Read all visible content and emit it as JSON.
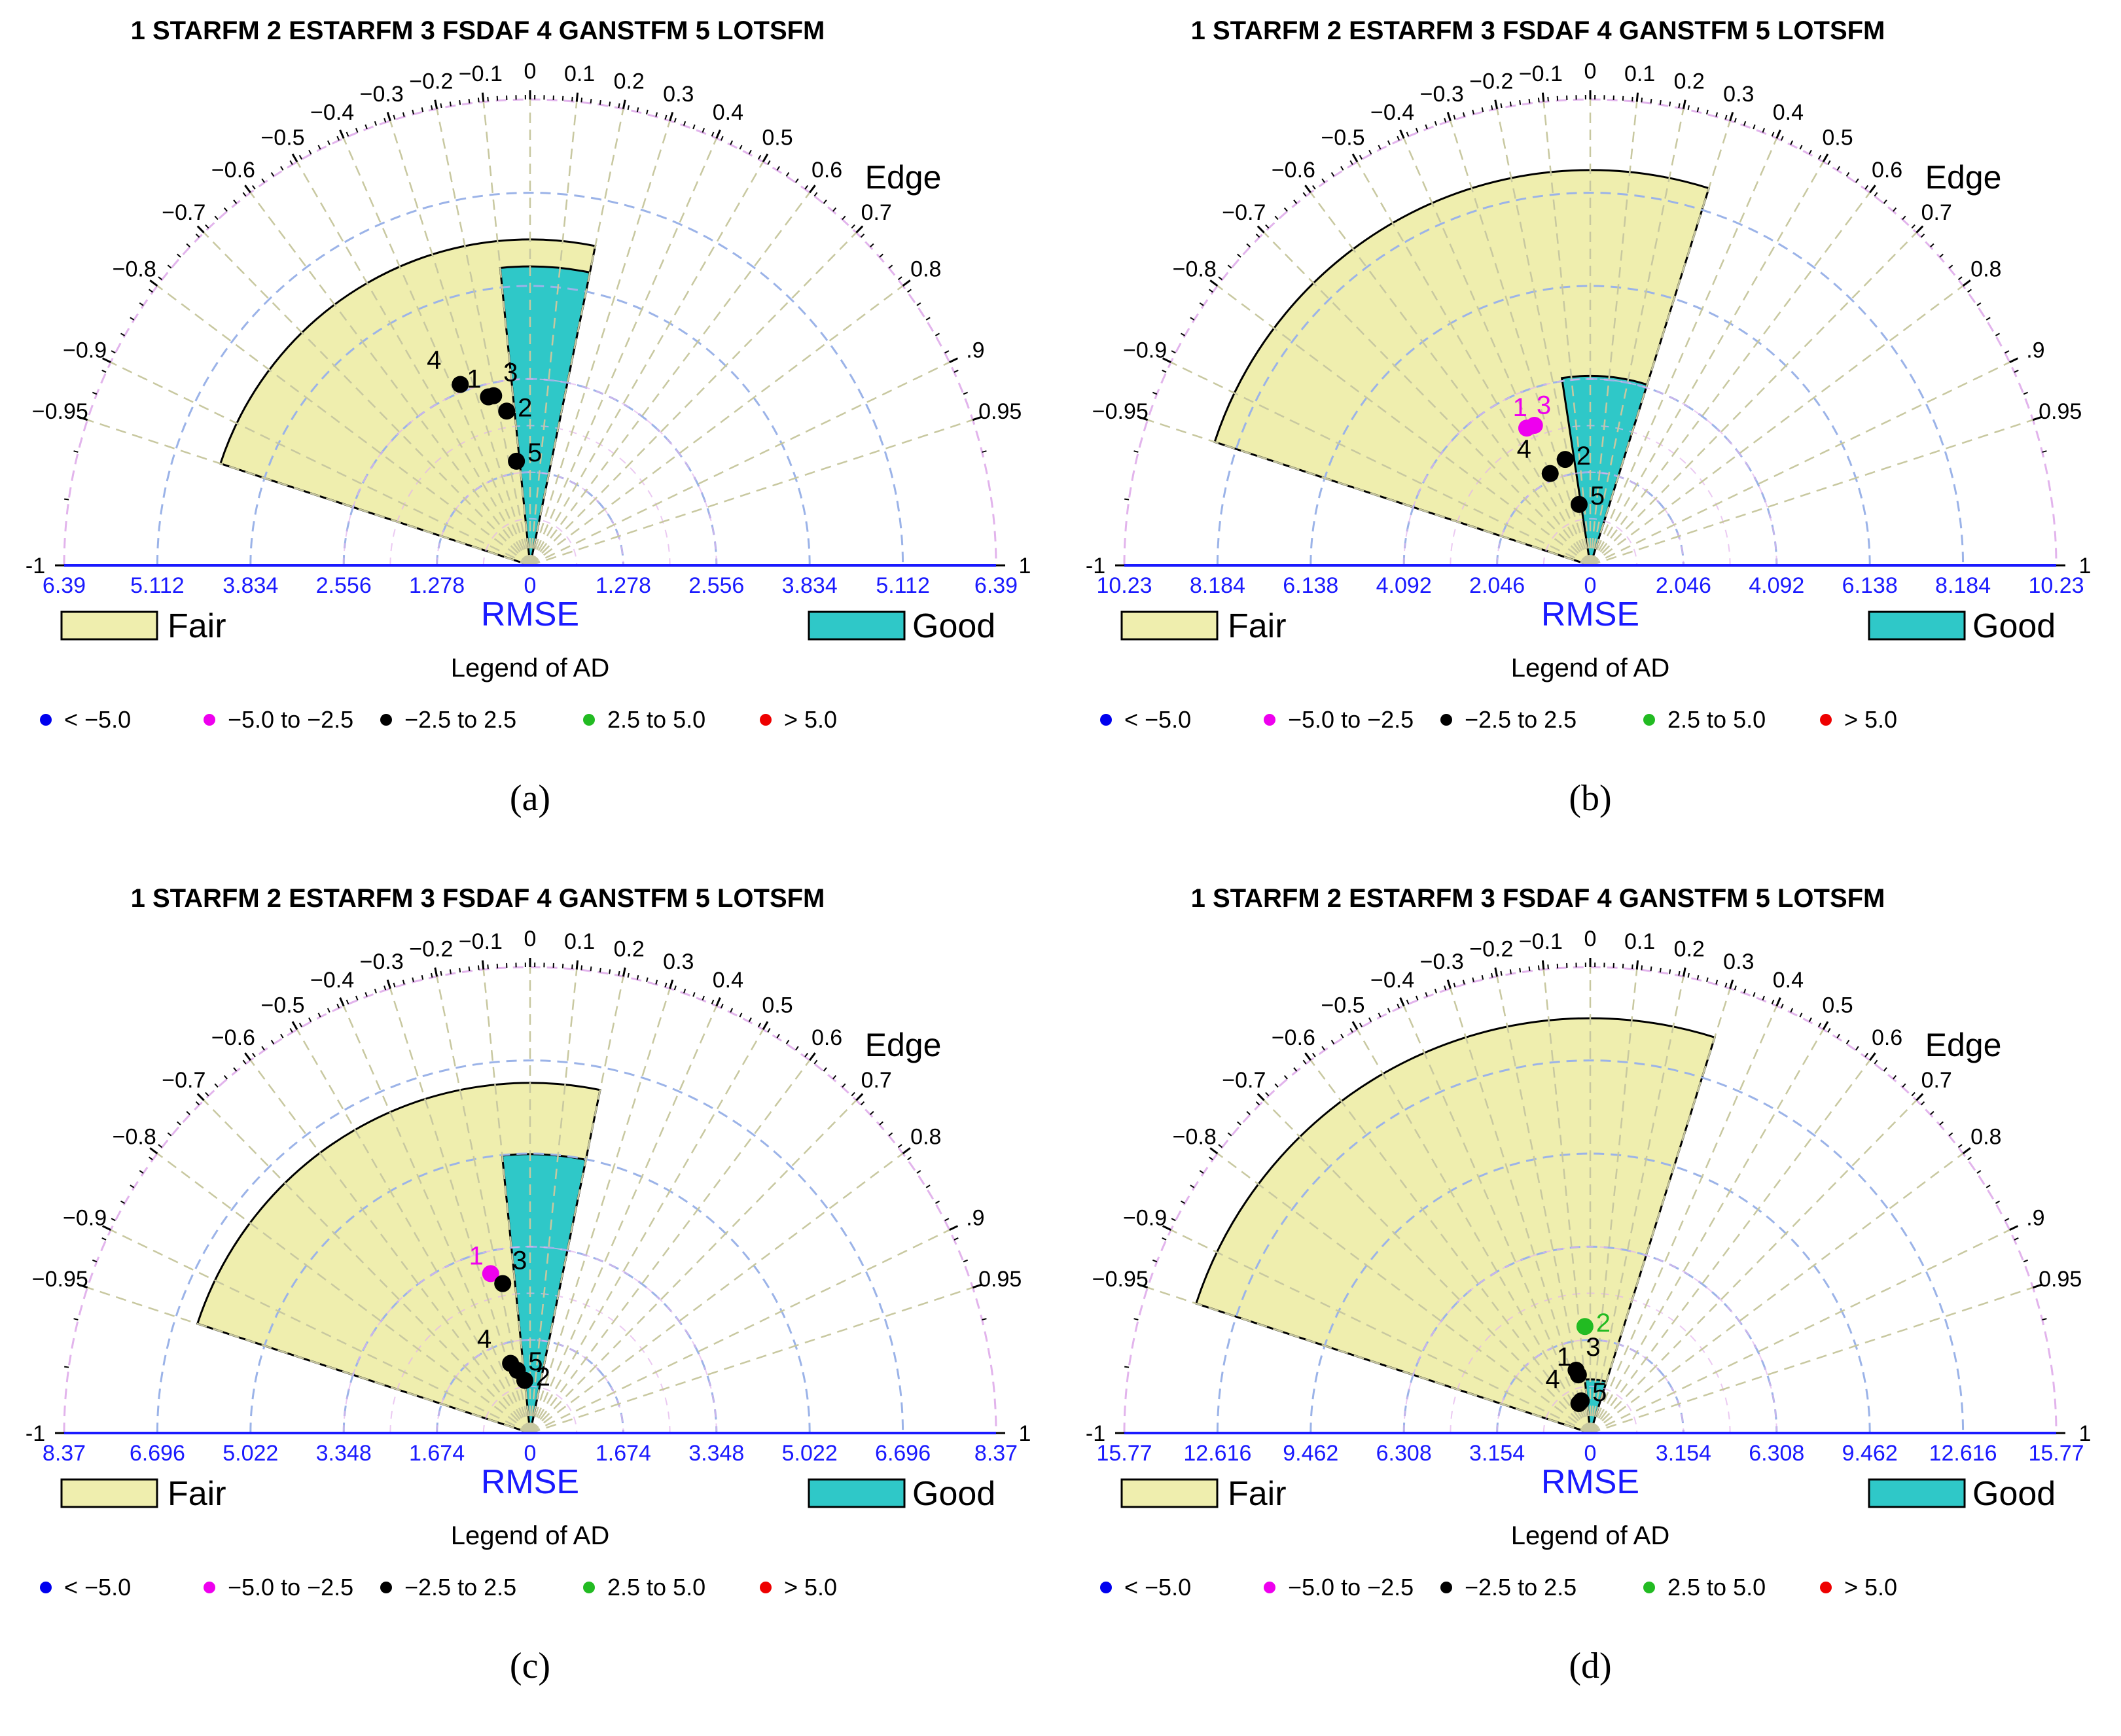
{
  "colors": {
    "fair_fill": "#efeeae",
    "good_fill": "#2fc8c8",
    "grid_corr": "#c8c8a0",
    "grid_rmse": "#9bb3e8",
    "grid_outer": "#e2b4ec",
    "axis": "#1a1aff",
    "ad_colors": [
      "#0000ee",
      "#ee00ee",
      "#000000",
      "#22bb22",
      "#ee0000"
    ]
  },
  "shared": {
    "methods": [
      "1 STARFM",
      "2 ESTARFM",
      "3 FSDAF",
      "4 GANSTFM",
      "5 LOTSFM"
    ],
    "corr_ticks": [
      -1,
      -0.95,
      -0.9,
      -0.8,
      -0.7,
      -0.6,
      -0.5,
      -0.4,
      -0.3,
      -0.2,
      -0.1,
      0,
      0.1,
      0.2,
      0.3,
      0.4,
      0.5,
      0.6,
      0.7,
      0.8,
      0.9,
      0.95,
      1
    ],
    "corr_tick_labels": [
      "-1",
      "−0.95",
      "−0.9",
      "−0.8",
      "−0.7",
      "−0.6",
      "−0.5",
      "−0.4",
      "−0.3",
      "−0.2",
      "−0.1",
      "0",
      "0.1",
      "0.2",
      "0.3",
      "0.4",
      "0.5",
      "0.6",
      "0.7",
      "0.8",
      ".9",
      "0.95",
      "1"
    ],
    "edge_label": "Edge",
    "rmse_label": "RMSE",
    "fair_label": "Fair",
    "good_label": "Good",
    "ad_title": "Legend of AD",
    "ad_legend": [
      "< −5.0",
      "−5.0  to −2.5",
      "−2.5  to  2.5",
      "2.5  to  5.0",
      ">  5.0"
    ]
  },
  "chart_data": [
    {
      "type": "polar-scatter",
      "panel": "(a)",
      "rmse_max": 6.39,
      "rmse_ticks": [
        "6.39",
        "5.112",
        "3.834",
        "2.556",
        "1.278",
        "0",
        "1.278",
        "2.556",
        "3.834",
        "5.112",
        "6.39"
      ],
      "fair_region": {
        "corr_range": [
          -0.95,
          0.2
        ],
        "rmse_max": 4.47
      },
      "good_region": {
        "corr_range": [
          -0.1,
          0.2
        ],
        "rmse_max": 4.1
      },
      "points": [
        {
          "id": "1",
          "corr": -0.24,
          "rmse": 2.38,
          "ad": "-2.5 to 2.5"
        },
        {
          "id": "2",
          "corr": -0.15,
          "rmse": 2.14,
          "ad": "-2.5 to 2.5"
        },
        {
          "id": "3",
          "corr": -0.21,
          "rmse": 2.38,
          "ad": "-2.5 to 2.5"
        },
        {
          "id": "4",
          "corr": -0.36,
          "rmse": 2.66,
          "ad": "-2.5 to 2.5"
        },
        {
          "id": "5",
          "corr": -0.13,
          "rmse": 1.44,
          "ad": "-2.5 to 2.5"
        }
      ]
    },
    {
      "type": "polar-scatter",
      "panel": "(b)",
      "rmse_max": 10.23,
      "rmse_ticks": [
        "10.23",
        "8.184",
        "6.138",
        "4.092",
        "2.046",
        "0",
        "2.046",
        "4.092",
        "6.138",
        "8.184",
        "10.23"
      ],
      "fair_region": {
        "corr_range": [
          -0.95,
          0.3
        ],
        "rmse_max": 8.68
      },
      "good_region": {
        "corr_range": [
          -0.15,
          0.3
        ],
        "rmse_max": 4.16
      },
      "points": [
        {
          "id": "1",
          "corr": -0.37,
          "rmse": 3.31,
          "ad": "-5.0 to -2.5"
        },
        {
          "id": "3",
          "corr": -0.42,
          "rmse": 3.32,
          "ad": "-5.0 to -2.5"
        },
        {
          "id": "2",
          "corr": -0.23,
          "rmse": 2.39,
          "ad": "-2.5 to 2.5"
        },
        {
          "id": "4",
          "corr": -0.4,
          "rmse": 2.2,
          "ad": "-2.5 to 2.5"
        },
        {
          "id": "5",
          "corr": -0.18,
          "rmse": 1.36,
          "ad": "-2.5 to 2.5"
        }
      ]
    },
    {
      "type": "polar-scatter",
      "panel": "(c)",
      "rmse_max": 8.37,
      "rmse_ticks": [
        "8.37",
        "6.696",
        "5.022",
        "3.348",
        "1.674",
        "0",
        "1.674",
        "3.348",
        "5.022",
        "6.696",
        "8.37"
      ],
      "fair_region": {
        "corr_range": [
          -0.95,
          0.2
        ],
        "rmse_max": 6.29
      },
      "good_region": {
        "corr_range": [
          -0.1,
          0.2
        ],
        "rmse_max": 5.01
      },
      "points": [
        {
          "id": "1",
          "corr": -0.24,
          "rmse": 2.95,
          "ad": "-5.0 to -2.5"
        },
        {
          "id": "3",
          "corr": -0.18,
          "rmse": 2.73,
          "ad": "-2.5 to 2.5"
        },
        {
          "id": "4",
          "corr": -0.27,
          "rmse": 1.3,
          "ad": "-2.5 to 2.5"
        },
        {
          "id": "5",
          "corr": -0.2,
          "rmse": 1.15,
          "ad": "-2.5 to 2.5"
        },
        {
          "id": "2",
          "corr": -0.1,
          "rmse": 0.95,
          "ad": "-2.5 to 2.5"
        }
      ]
    },
    {
      "type": "polar-scatter",
      "panel": "(d)",
      "rmse_max": 15.77,
      "rmse_ticks": [
        "15.77",
        "12.616",
        "9.462",
        "6.308",
        "3.154",
        "0",
        "3.154",
        "6.308",
        "9.462",
        "12.616",
        "15.77"
      ],
      "fair_region": {
        "corr_range": [
          -0.95,
          0.3
        ],
        "rmse_max": 14.04
      },
      "good_region": {
        "corr_range": [
          -0.1,
          0.3
        ],
        "rmse_max": 1.82
      },
      "points": [
        {
          "id": "2",
          "corr": -0.05,
          "rmse": 3.61,
          "ad": "2.5 to 5.0"
        },
        {
          "id": "3",
          "corr": -0.22,
          "rmse": 2.18,
          "ad": "-2.5 to 2.5"
        },
        {
          "id": "1",
          "corr": -0.2,
          "rmse": 2.01,
          "ad": "-2.5 to 2.5"
        },
        {
          "id": "5",
          "corr": -0.27,
          "rmse": 1.13,
          "ad": "-2.5 to 2.5"
        },
        {
          "id": "4",
          "corr": -0.36,
          "rmse": 1.07,
          "ad": "-2.5 to 2.5"
        }
      ]
    }
  ]
}
